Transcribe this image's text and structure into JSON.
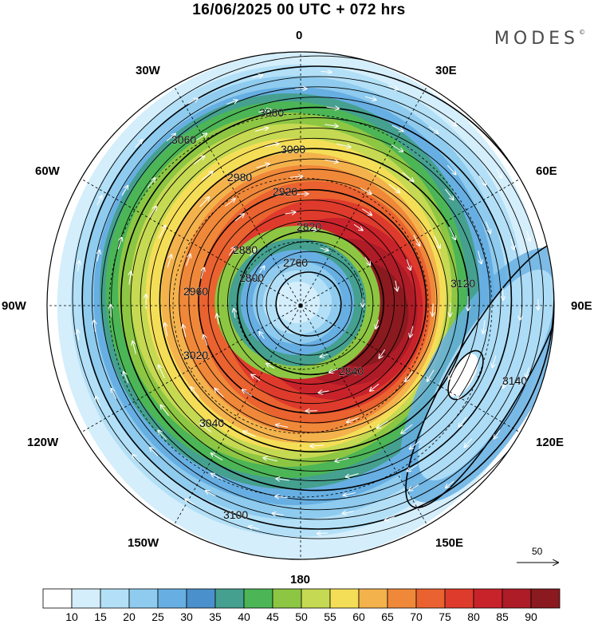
{
  "title": "16/06/2025  00 UTC  + 072 hrs",
  "brand": {
    "name": "MODES",
    "mark": "©"
  },
  "longitude_labels": [
    {
      "text": "0",
      "pos": "top"
    },
    {
      "text": "30E",
      "pos": "top-right"
    },
    {
      "text": "60E",
      "pos": "upper-right"
    },
    {
      "text": "90E",
      "pos": "right"
    },
    {
      "text": "120E",
      "pos": "lower-right"
    },
    {
      "text": "150E",
      "pos": "bottom-right"
    },
    {
      "text": "180",
      "pos": "bottom"
    },
    {
      "text": "150W",
      "pos": "bottom-left"
    },
    {
      "text": "120W",
      "pos": "lower-left"
    },
    {
      "text": "90W",
      "pos": "left"
    },
    {
      "text": "60W",
      "pos": "upper-left"
    },
    {
      "text": "30W",
      "pos": "top-left"
    }
  ],
  "contour_labels": [
    "2760",
    "2800",
    "2820",
    "2840",
    "2880",
    "2920",
    "2960",
    "2980",
    "3000",
    "3020",
    "3040",
    "3060",
    "3080",
    "3100",
    "3120",
    "3140"
  ],
  "wind_reference": {
    "value": "50"
  },
  "colorbar": {
    "labels": [
      "10",
      "15",
      "20",
      "25",
      "30",
      "35",
      "40",
      "45",
      "50",
      "55",
      "60",
      "65",
      "70",
      "75",
      "80",
      "85",
      "90"
    ],
    "colors": [
      "#ffffff",
      "#d4eefb",
      "#b3e0f7",
      "#8ecbee",
      "#67afe2",
      "#4a90cc",
      "#45a08f",
      "#4cb556",
      "#8dc643",
      "#c6d952",
      "#f5de57",
      "#f4b24c",
      "#f0883a",
      "#e9622f",
      "#de3b2c",
      "#c8232b",
      "#ad1c27",
      "#8a1a1f"
    ]
  }
}
